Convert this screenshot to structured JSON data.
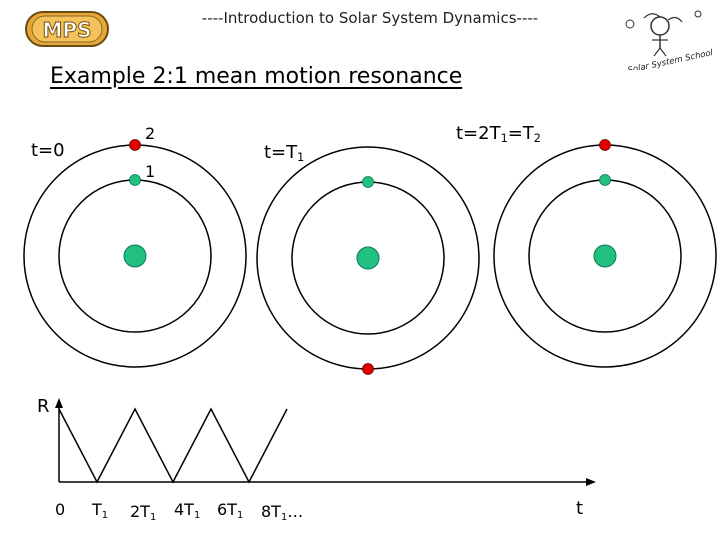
{
  "header": {
    "title": "----Introduction to Solar System Dynamics----"
  },
  "logos": {
    "left_text": "MPS",
    "right_text": "Solar System School"
  },
  "slide": {
    "title": "Example 2:1 mean motion resonance"
  },
  "panels": [
    {
      "time_label_parts": [
        "t=0"
      ]
    },
    {
      "time_label_parts": [
        "t=T",
        "1"
      ]
    },
    {
      "time_label_parts": [
        "t=2T",
        "1",
        "=T",
        "2"
      ]
    }
  ],
  "orbit_labels": {
    "outer": "2",
    "inner": "1"
  },
  "plot": {
    "y_label": "R",
    "x_label": "t",
    "ticks": [
      {
        "main": "0",
        "sub": "",
        "suffix": ""
      },
      {
        "main": "T",
        "sub": "1",
        "suffix": ""
      },
      {
        "main": "2T",
        "sub": "1",
        "suffix": ""
      },
      {
        "main": "4T",
        "sub": "1",
        "suffix": ""
      },
      {
        "main": "6T",
        "sub": "1",
        "suffix": ""
      },
      {
        "main": "8T",
        "sub": "1",
        "suffix": "…"
      }
    ]
  },
  "colors": {
    "star": "#20c080",
    "inner_body": "#20c080",
    "outer_body": "#e00000"
  }
}
